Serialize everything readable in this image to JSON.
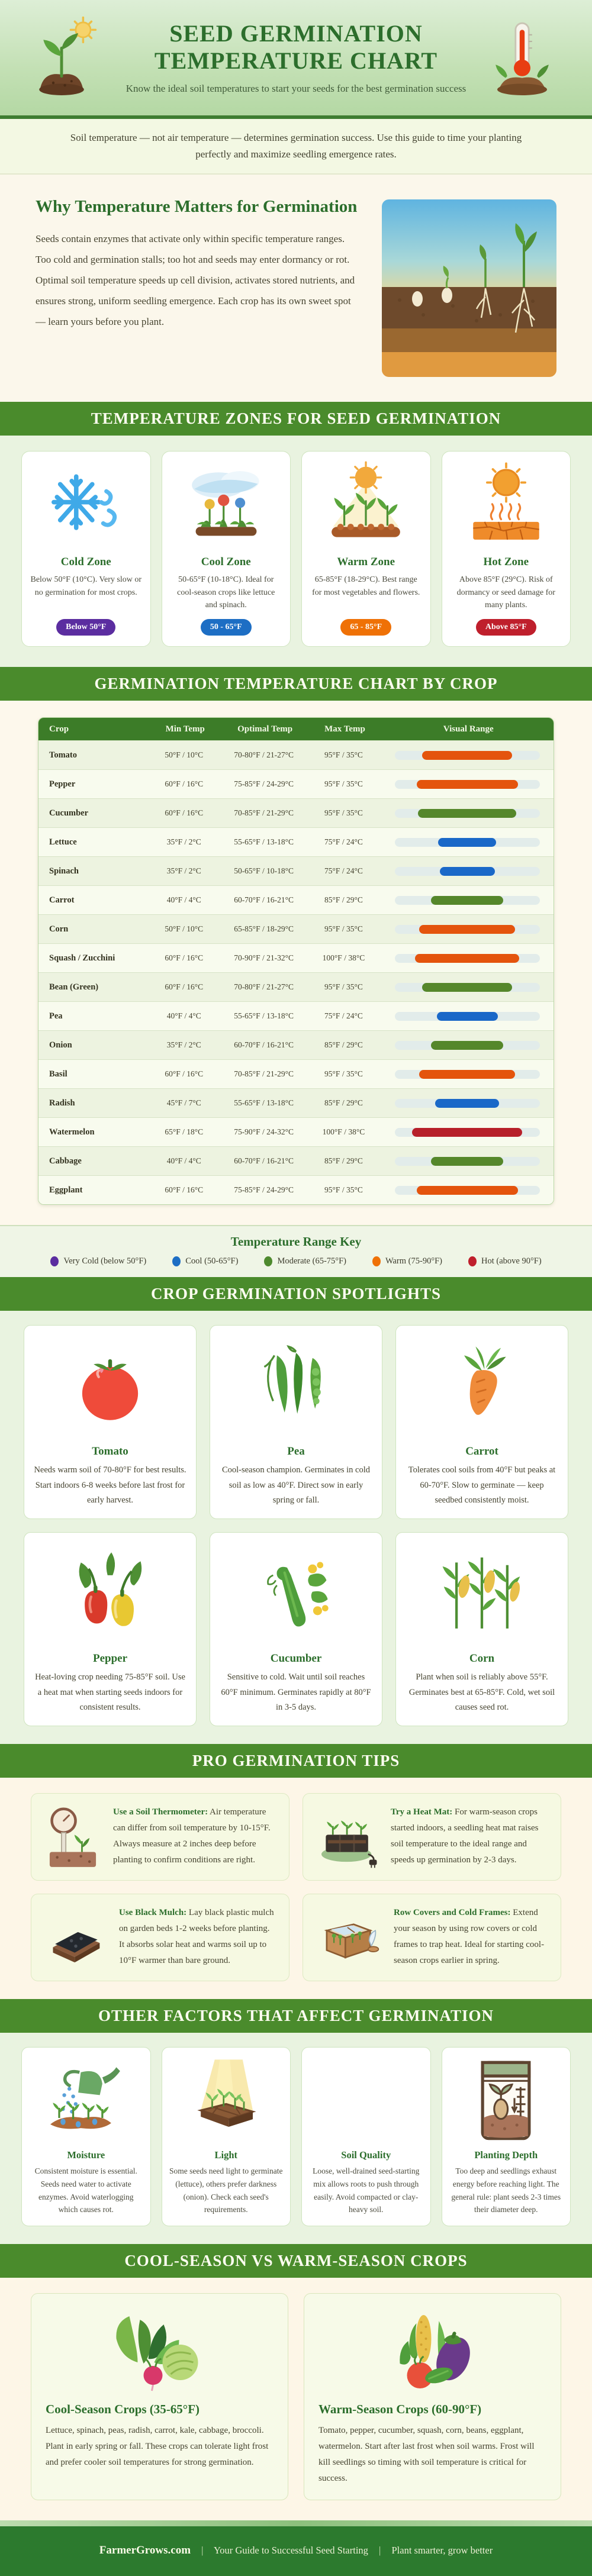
{
  "header": {
    "title": "SEED GERMINATION TEMPERATURE CHART",
    "subtitle": "Know the ideal soil temperatures to start your seeds for the best germination success",
    "left_icon": "seedling-sun-icon",
    "right_icon": "thermometer-soil-icon"
  },
  "intro": {
    "text": "Soil temperature — not air temperature — determines germination success. Use this guide to time your planting perfectly and maximize seedling emergence rates."
  },
  "why": {
    "heading": "Why Temperature Matters for Germination",
    "paragraph": "Seeds contain enzymes that activate only within specific temperature ranges. Too cold and germination stalls; too hot and seeds may enter dormancy or rot. Optimal soil temperature speeds up cell division, activates stored nutrients, and ensures strong, uniform seedling emergence. Each crop has its own sweet spot — learn yours before you plant.",
    "illustration": "germination-stages-illustration"
  },
  "banners": {
    "zones": "TEMPERATURE ZONES FOR SEED GERMINATION",
    "chart": "GERMINATION TEMPERATURE CHART BY CROP",
    "spotlights": "CROP GERMINATION SPOTLIGHTS",
    "tips": "PRO GERMINATION TIPS",
    "factors": "OTHER FACTORS THAT AFFECT GERMINATION",
    "seasons": "COOL-SEASON VS WARM-SEASON CROPS"
  },
  "zones": {
    "cards": [
      {
        "title": "Cold Zone",
        "icon": "snowflake-wind-icon",
        "text": "Below 50°F (10°C). Very slow or no germination for most crops.",
        "badge": "Below 50°F",
        "badge_color": "#5b2da0"
      },
      {
        "title": "Cool Zone",
        "icon": "cloud-flowers-icon",
        "text": "50-65°F (10-18°C). Ideal for cool-season crops like lettuce and spinach.",
        "badge": "50 - 65°F",
        "badge_color": "#1d6ec4"
      },
      {
        "title": "Warm Zone",
        "icon": "sun-sprouts-icon",
        "text": "65-85°F (18-29°C). Best range for most vegetables and flowers.",
        "badge": "65 - 85°F",
        "badge_color": "#ef7106"
      },
      {
        "title": "Hot Zone",
        "icon": "hot-sun-cracked-icon",
        "text": "Above 85°F (29°C). Risk of dormancy or seed damage for many plants.",
        "badge": "Above 85°F",
        "badge_color": "#bf1f2c"
      }
    ]
  },
  "chart_table": {
    "headers": [
      "Crop",
      "Min Temp",
      "Optimal Temp",
      "Max Temp",
      "Visual Range"
    ],
    "bar_colors": {
      "cool": "#1A68C8",
      "moderate": "#55872B",
      "warm": "#E4540D",
      "hot": "#B7202A"
    },
    "rows": [
      {
        "crop": "Tomato",
        "min": "50°F / 10°C",
        "optimal": "70-80°F / 21-27°C",
        "max": "95°F / 35°C",
        "bar": {
          "zone": "warm",
          "color": "#E4540D",
          "start_pct": 19,
          "width_pct": 62
        }
      },
      {
        "crop": "Pepper",
        "min": "60°F / 16°C",
        "optimal": "75-85°F / 24-29°C",
        "max": "95°F / 35°C",
        "bar": {
          "zone": "warm",
          "color": "#E4540D",
          "start_pct": 15,
          "width_pct": 70
        }
      },
      {
        "crop": "Cucumber",
        "min": "60°F / 16°C",
        "optimal": "70-85°F / 21-29°C",
        "max": "95°F / 35°C",
        "bar": {
          "zone": "moderate",
          "color": "#55872B",
          "start_pct": 16,
          "width_pct": 68
        }
      },
      {
        "crop": "Lettuce",
        "min": "35°F / 2°C",
        "optimal": "55-65°F / 13-18°C",
        "max": "75°F / 24°C",
        "bar": {
          "zone": "cool",
          "color": "#1A68C8",
          "start_pct": 30,
          "width_pct": 40
        }
      },
      {
        "crop": "Spinach",
        "min": "35°F / 2°C",
        "optimal": "50-65°F / 10-18°C",
        "max": "75°F / 24°C",
        "bar": {
          "zone": "cool",
          "color": "#1A68C8",
          "start_pct": 31,
          "width_pct": 38
        }
      },
      {
        "crop": "Carrot",
        "min": "40°F / 4°C",
        "optimal": "60-70°F / 16-21°C",
        "max": "85°F / 29°C",
        "bar": {
          "zone": "moderate",
          "color": "#55872B",
          "start_pct": 25,
          "width_pct": 50
        }
      },
      {
        "crop": "Corn",
        "min": "50°F / 10°C",
        "optimal": "65-85°F / 18-29°C",
        "max": "95°F / 35°C",
        "bar": {
          "zone": "warm",
          "color": "#E4540D",
          "start_pct": 17,
          "width_pct": 66
        }
      },
      {
        "crop": "Squash / Zucchini",
        "min": "60°F / 16°C",
        "optimal": "70-90°F / 21-32°C",
        "max": "100°F / 38°C",
        "bar": {
          "zone": "warm",
          "color": "#E4540D",
          "start_pct": 14,
          "width_pct": 72
        }
      },
      {
        "crop": "Bean (Green)",
        "min": "60°F / 16°C",
        "optimal": "70-80°F / 21-27°C",
        "max": "95°F / 35°C",
        "bar": {
          "zone": "moderate",
          "color": "#55872B",
          "start_pct": 19,
          "width_pct": 62
        }
      },
      {
        "crop": "Pea",
        "min": "40°F / 4°C",
        "optimal": "55-65°F / 13-18°C",
        "max": "75°F / 24°C",
        "bar": {
          "zone": "cool",
          "color": "#1A68C8",
          "start_pct": 29,
          "width_pct": 42
        }
      },
      {
        "crop": "Onion",
        "min": "35°F / 2°C",
        "optimal": "60-70°F / 16-21°C",
        "max": "85°F / 29°C",
        "bar": {
          "zone": "moderate",
          "color": "#55872B",
          "start_pct": 25,
          "width_pct": 50
        }
      },
      {
        "crop": "Basil",
        "min": "60°F / 16°C",
        "optimal": "70-85°F / 21-29°C",
        "max": "95°F / 35°C",
        "bar": {
          "zone": "warm",
          "color": "#E4540D",
          "start_pct": 17,
          "width_pct": 66
        }
      },
      {
        "crop": "Radish",
        "min": "45°F / 7°C",
        "optimal": "55-65°F / 13-18°C",
        "max": "85°F / 29°C",
        "bar": {
          "zone": "cool",
          "color": "#1A68C8",
          "start_pct": 28,
          "width_pct": 44
        }
      },
      {
        "crop": "Watermelon",
        "min": "65°F / 18°C",
        "optimal": "75-90°F / 24-32°C",
        "max": "100°F / 38°C",
        "bar": {
          "zone": "hot",
          "color": "#B7202A",
          "start_pct": 12,
          "width_pct": 76
        }
      },
      {
        "crop": "Cabbage",
        "min": "40°F / 4°C",
        "optimal": "60-70°F / 16-21°C",
        "max": "85°F / 29°C",
        "bar": {
          "zone": "moderate",
          "color": "#55872B",
          "start_pct": 25,
          "width_pct": 50
        }
      },
      {
        "crop": "Eggplant",
        "min": "60°F / 16°C",
        "optimal": "75-85°F / 24-29°C",
        "max": "95°F / 35°C",
        "bar": {
          "zone": "warm",
          "color": "#E4540D",
          "start_pct": 15,
          "width_pct": 70
        }
      }
    ]
  },
  "range_key": {
    "title": "Temperature Range Key",
    "items": [
      {
        "label": "Very Cold (below 50°F)",
        "color": "#5b2da0"
      },
      {
        "label": "Cool (50-65°F)",
        "color": "#1d6ec4"
      },
      {
        "label": "Moderate (65-75°F)",
        "color": "#4e8a2e"
      },
      {
        "label": "Warm (75-90°F)",
        "color": "#ef7106"
      },
      {
        "label": "Hot (above 90°F)",
        "color": "#bf1f2c"
      }
    ]
  },
  "spotlights": {
    "cards": [
      {
        "title": "Tomato",
        "icon": "tomato-icon",
        "text": "Needs warm soil of 70-80°F for best results. Start indoors 6-8 weeks before last frost for early harvest."
      },
      {
        "title": "Pea",
        "icon": "pea-icon",
        "text": "Cool-season champion. Germinates in cold soil as low as 40°F. Direct sow in early spring or fall."
      },
      {
        "title": "Carrot",
        "icon": "carrot-icon",
        "text": "Tolerates cool soils from 40°F but peaks at 60-70°F. Slow to germinate — keep seedbed consistently moist."
      },
      {
        "title": "Pepper",
        "icon": "pepper-icon",
        "text": "Heat-loving crop needing 75-85°F soil. Use a heat mat when starting seeds indoors for consistent results."
      },
      {
        "title": "Cucumber",
        "icon": "cucumber-icon",
        "text": "Sensitive to cold. Wait until soil reaches 60°F minimum. Germinates rapidly at 80°F in 3-5 days."
      },
      {
        "title": "Corn",
        "icon": "corn-icon",
        "text": "Plant when soil is reliably above 55°F. Germinates best at 65-85°F. Cold, wet soil causes seed rot."
      }
    ]
  },
  "pro_tips": {
    "cards": [
      {
        "lead": "Use a Soil Thermometer:",
        "icon": "soil-thermometer-icon",
        "text": " Air temperature can differ from soil temperature by 10-15°F. Always measure at 2 inches deep before planting to confirm conditions are right."
      },
      {
        "lead": "Try a Heat Mat:",
        "icon": "heat-mat-icon",
        "text": " For warm-season crops started indoors, a seedling heat mat raises soil temperature to the ideal range and speeds up germination by 2-3 days."
      },
      {
        "lead": "Use Black Mulch:",
        "icon": "black-mulch-icon",
        "text": " Lay black plastic mulch on garden beds 1-2 weeks before planting. It absorbs solar heat and warms soil up to 10°F warmer than bare ground."
      },
      {
        "lead": "Row Covers and Cold Frames:",
        "icon": "cold-frame-icon",
        "text": " Extend your season by using row covers or cold frames to trap heat. Ideal for starting cool-season crops earlier in spring."
      }
    ]
  },
  "other_factors": {
    "cards": [
      {
        "title": "Moisture",
        "icon": "watering-can-icon",
        "text": "Consistent moisture is essential. Seeds need water to activate enzymes. Avoid waterlogging which causes rot."
      },
      {
        "title": "Light",
        "icon": "grow-light-icon",
        "text": "Some seeds need light to germinate (lettuce), others prefer darkness (onion). Check each seed's requirements."
      },
      {
        "title": "Soil Quality",
        "icon": "blank-image",
        "text": "Loose, well-drained seed-starting mix allows roots to push through easily. Avoid compacted or clay-heavy soil."
      },
      {
        "title": "Planting Depth",
        "icon": "seed-packet-icon",
        "text": "Too deep and seedlings exhaust energy before reaching light. The general rule: plant seeds 2-3 times their diameter deep."
      }
    ]
  },
  "seasons": {
    "cards": [
      {
        "title": "Cool-Season Crops (35-65°F)",
        "icon": "cool-veggies-icon",
        "text": "Lettuce, spinach, peas, radish, carrot, kale, cabbage, broccoli. Plant in early spring or fall. These crops can tolerate light frost and prefer cooler soil temperatures for strong germination."
      },
      {
        "title": "Warm-Season Crops (60-90°F)",
        "icon": "warm-veggies-icon",
        "text": "Tomato, pepper, cucumber, squash, corn, beans, eggplant, watermelon. Start after last frost when soil warms. Frost will kill seedlings so timing with soil temperature is critical for success."
      }
    ]
  },
  "footer": {
    "site": "FarmerGrows.com",
    "separator": "|",
    "tagline1": "Your Guide to Successful Seed Starting",
    "tagline2": "Plant smarter, grow better"
  }
}
